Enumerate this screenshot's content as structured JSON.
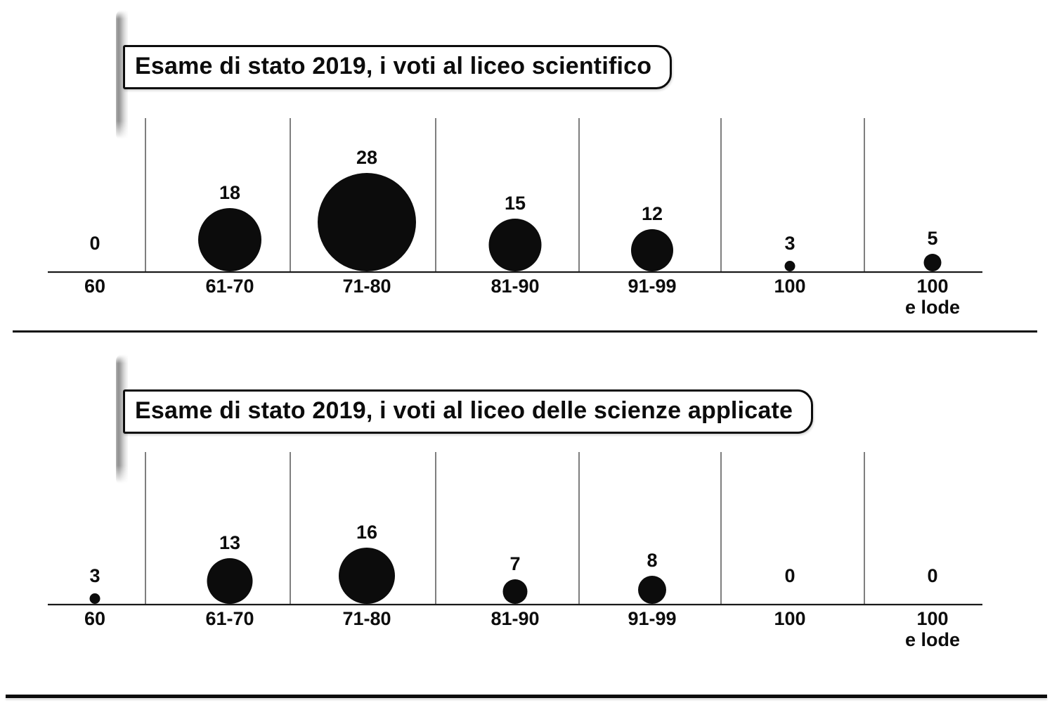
{
  "page": {
    "background_color": "#ffffff",
    "ink_color": "#0c0c0c"
  },
  "chart_data": [
    {
      "type": "bubble",
      "title": "Esame di stato 2019, i voti al liceo scientifico",
      "categories": [
        "60",
        "61-70",
        "71-80",
        "81-90",
        "91-99",
        "100",
        "100\ne lode"
      ],
      "values": [
        0,
        18,
        28,
        15,
        12,
        3,
        5
      ],
      "xlabel": "",
      "ylabel": "",
      "bubble_color": "#0c0c0c",
      "value_labels_shown": true,
      "legend": "none",
      "grid": "vertical-category-separators",
      "notes": "bubble area anchored to baseline; number of students per grade band"
    },
    {
      "type": "bubble",
      "title": "Esame di stato 2019, i voti al liceo delle scienze applicate",
      "categories": [
        "60",
        "61-70",
        "71-80",
        "81-90",
        "91-99",
        "100",
        "100\ne lode"
      ],
      "values": [
        3,
        13,
        16,
        7,
        8,
        0,
        0
      ],
      "xlabel": "",
      "ylabel": "",
      "bubble_color": "#0c0c0c",
      "value_labels_shown": true,
      "legend": "none",
      "grid": "vertical-category-separators",
      "notes": "bubble area anchored to baseline; number of students per grade band"
    }
  ]
}
